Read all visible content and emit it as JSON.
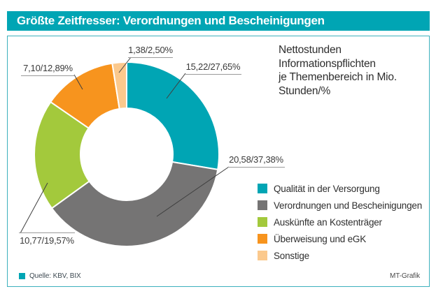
{
  "header": {
    "title": "Größte Zeitfresser: Verordnungen und Bescheinigungen"
  },
  "panel": {
    "lines": [
      "Nettostunden",
      "Informationspflichten",
      "je Themenbereich in Mio.",
      "Stunden/%"
    ]
  },
  "chart_data": {
    "type": "pie",
    "subtype": "donut",
    "title": "Nettostunden Informationspflichten je Themenbereich in Mio. Stunden/%",
    "start_angle_deg": 0,
    "direction": "clockwise",
    "legend_position": "right",
    "segments": [
      {
        "label": "Qualität in der Versorgung",
        "hours_mio": 15.22,
        "percent": 27.65,
        "display": "15,22/27,65%",
        "color": "#00a5b4"
      },
      {
        "label": "Verordnungen und Bescheinigungen",
        "hours_mio": 20.58,
        "percent": 37.38,
        "display": "20,58/37,38%",
        "color": "#757474"
      },
      {
        "label": "Auskünfte an Kostenträger",
        "hours_mio": 10.77,
        "percent": 19.57,
        "display": "10,77/19,57%",
        "color": "#a3c93c"
      },
      {
        "label": "Überweisung und eGK",
        "hours_mio": 7.1,
        "percent": 12.89,
        "display": "7,10/12,89%",
        "color": "#f7941e"
      },
      {
        "label": "Sonstige",
        "hours_mio": 1.38,
        "percent": 2.5,
        "display": "1,38/2,50%",
        "color": "#fbc98d"
      }
    ]
  },
  "footer": {
    "source": "Quelle: KBV, BIX",
    "credit": "MT-Grafik"
  },
  "colors": {
    "accent": "#00a5b4",
    "frame_border": "#3db1bd",
    "label_text": "#3a3a3a",
    "underline": "#9a9a9a",
    "leader_line": "#3f3f3f"
  }
}
